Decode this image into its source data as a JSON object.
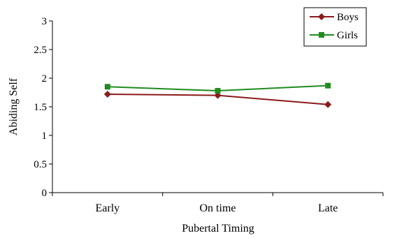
{
  "chart_data": {
    "type": "line",
    "categories": [
      "Early",
      "On time",
      "Late"
    ],
    "series": [
      {
        "name": "Boys",
        "values": [
          1.72,
          1.7,
          1.54
        ],
        "color": "#8B1A1A",
        "marker": "diamond"
      },
      {
        "name": "Girls",
        "values": [
          1.85,
          1.78,
          1.87
        ],
        "color": "#1E8C1E",
        "marker": "square"
      }
    ],
    "xlabel": "Pubertal Timing",
    "ylabel": "Abiding Self",
    "ylim": [
      0,
      3
    ],
    "yticks": [
      "0",
      "0.5",
      "1",
      "1.5",
      "2",
      "2.5",
      "3"
    ],
    "grid": false,
    "legend_position": "top-right"
  }
}
